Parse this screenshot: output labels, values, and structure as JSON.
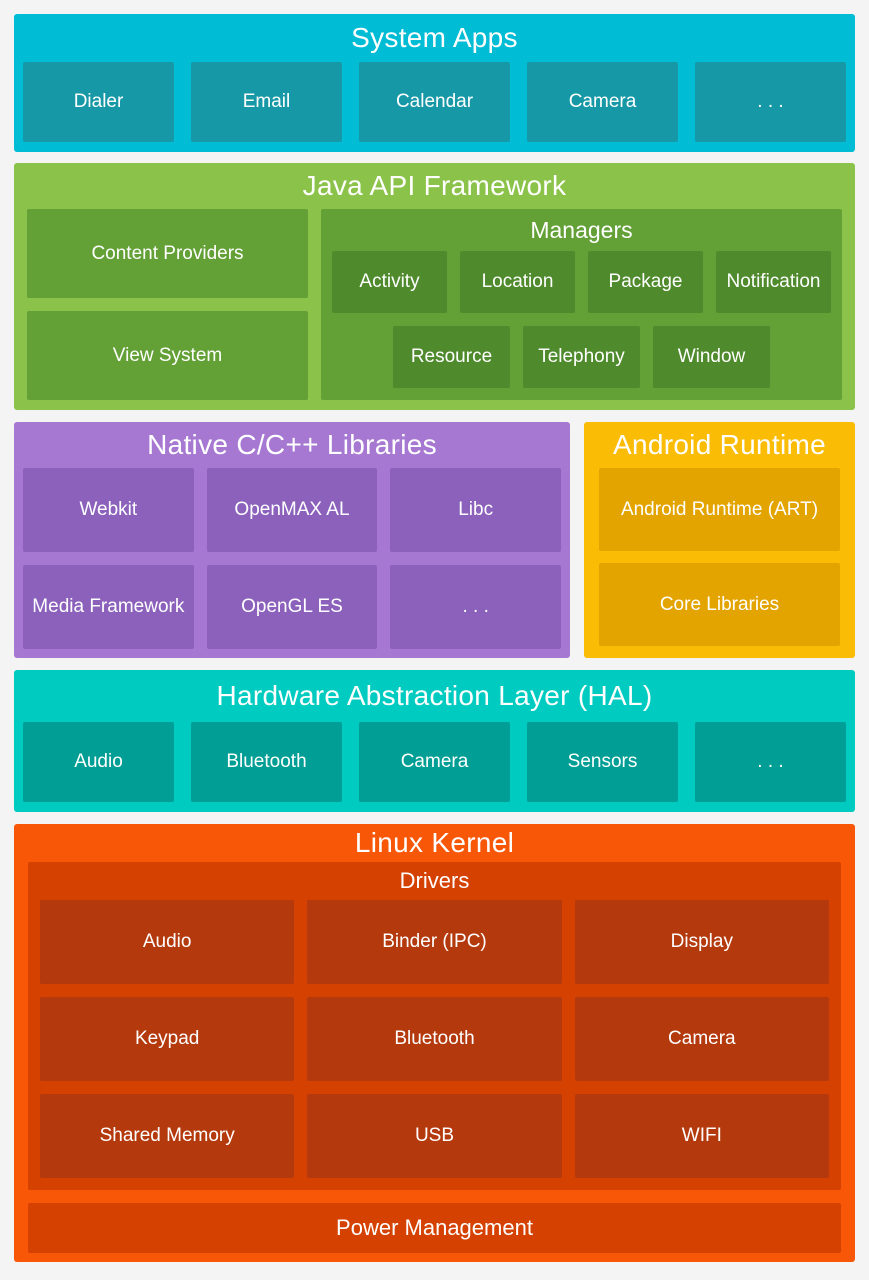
{
  "colors": {
    "page_bg": "#f3f4f3",
    "system_apps_bg": "#00bcd4",
    "system_apps_box": "#1798a7",
    "java_bg": "#8bc34a",
    "java_box": "#63a036",
    "java_inner_box": "#4f8a2d",
    "native_bg": "#a678d2",
    "native_box": "#8b61bc",
    "runtime_bg": "#fbbc05",
    "runtime_box": "#e4a400",
    "hal_bg": "#00cbc0",
    "hal_box": "#009e94",
    "kernel_bg": "#f85708",
    "kernel_container": "#d54100",
    "kernel_box": "#b43a0e",
    "text": "#ffffff"
  },
  "system_apps": {
    "title": "System Apps",
    "items": [
      "Dialer",
      "Email",
      "Calendar",
      "Camera",
      ". . ."
    ]
  },
  "java_api": {
    "title": "Java API Framework",
    "left_items": [
      "Content Providers",
      "View System"
    ],
    "managers": {
      "title": "Managers",
      "row1": [
        "Activity",
        "Location",
        "Package",
        "Notification"
      ],
      "row2": [
        "Resource",
        "Telephony",
        "Window"
      ]
    }
  },
  "native_libs": {
    "title": "Native C/C++ Libraries",
    "items": [
      "Webkit",
      "OpenMAX AL",
      "Libc",
      "Media Framework",
      "OpenGL ES",
      ". . ."
    ]
  },
  "android_runtime": {
    "title": "Android Runtime",
    "items": [
      "Android Runtime (ART)",
      "Core Libraries"
    ]
  },
  "hal": {
    "title": "Hardware Abstraction Layer (HAL)",
    "items": [
      "Audio",
      "Bluetooth",
      "Camera",
      "Sensors",
      ". . ."
    ]
  },
  "linux_kernel": {
    "title": "Linux Kernel",
    "drivers": {
      "title": "Drivers",
      "items": [
        "Audio",
        "Binder (IPC)",
        "Display",
        "Keypad",
        "Bluetooth",
        "Camera",
        "Shared Memory",
        "USB",
        "WIFI"
      ]
    },
    "power": "Power Management"
  }
}
